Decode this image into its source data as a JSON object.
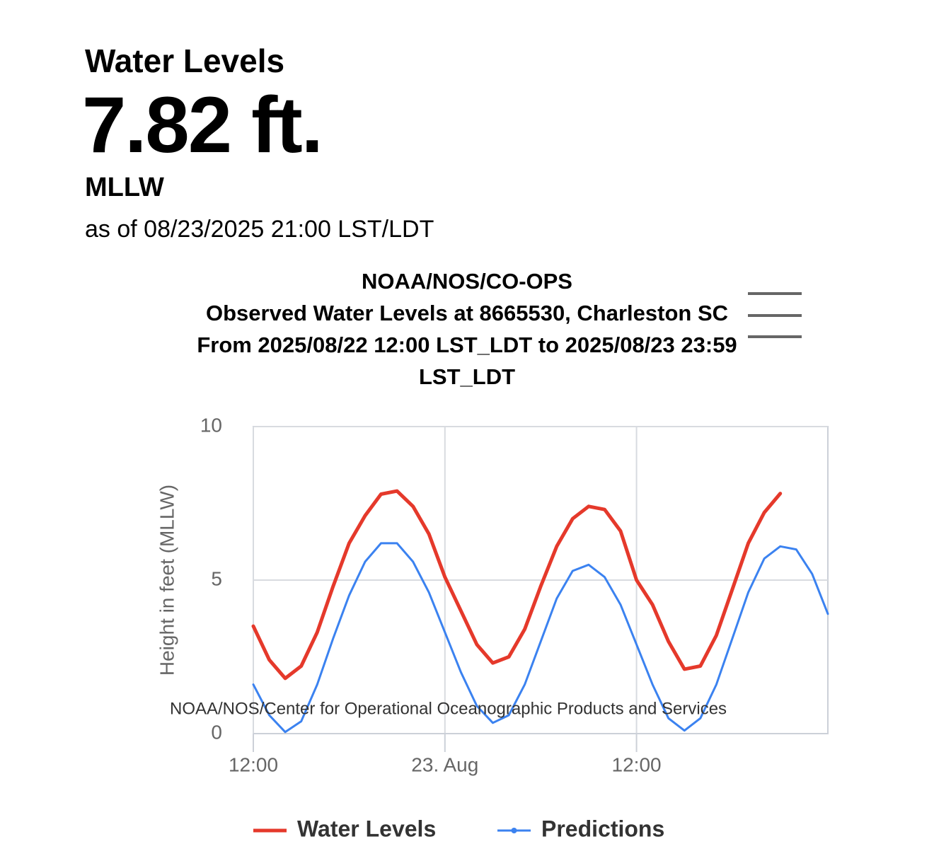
{
  "header": {
    "title": "Water Levels",
    "value": "7.82 ft.",
    "datum": "MLLW",
    "as_of": "as of 08/23/2025 21:00 LST/LDT"
  },
  "chart_data": {
    "type": "line",
    "title": [
      "NOAA/NOS/CO-OPS",
      "Observed Water Levels at 8665530, Charleston SC",
      "From 2025/08/22 12:00 LST_LDT to 2025/08/23 23:59 LST_LDT"
    ],
    "ylabel": "Height in feet (MLLW)",
    "credit": "NOAA/NOS/Center for Operational Oceanographic Products and Services",
    "xlim": [
      "2025-08-22 12:00",
      "2025-08-23 23:59"
    ],
    "xticks": [
      {
        "value": "2025-08-22 12:00",
        "label": "12:00"
      },
      {
        "value": "2025-08-23 00:00",
        "label": "23. Aug"
      },
      {
        "value": "2025-08-23 12:00",
        "label": "12:00"
      }
    ],
    "ylim": [
      0,
      10
    ],
    "yticks": [
      0,
      5,
      10
    ],
    "grid": true,
    "legend": "bottom",
    "series": [
      {
        "name": "Water Levels",
        "color": "#e5392b",
        "x": [
          "2025-08-22 12:00",
          "2025-08-22 13:00",
          "2025-08-22 14:00",
          "2025-08-22 15:00",
          "2025-08-22 16:00",
          "2025-08-22 17:00",
          "2025-08-22 18:00",
          "2025-08-22 19:00",
          "2025-08-22 20:00",
          "2025-08-22 21:00",
          "2025-08-22 22:00",
          "2025-08-22 23:00",
          "2025-08-23 00:00",
          "2025-08-23 01:00",
          "2025-08-23 02:00",
          "2025-08-23 03:00",
          "2025-08-23 04:00",
          "2025-08-23 05:00",
          "2025-08-23 06:00",
          "2025-08-23 07:00",
          "2025-08-23 08:00",
          "2025-08-23 09:00",
          "2025-08-23 10:00",
          "2025-08-23 11:00",
          "2025-08-23 12:00",
          "2025-08-23 13:00",
          "2025-08-23 14:00",
          "2025-08-23 15:00",
          "2025-08-23 16:00",
          "2025-08-23 17:00",
          "2025-08-23 18:00",
          "2025-08-23 19:00",
          "2025-08-23 20:00",
          "2025-08-23 21:00"
        ],
        "values": [
          3.5,
          2.4,
          1.8,
          2.2,
          3.3,
          4.8,
          6.2,
          7.1,
          7.8,
          7.9,
          7.4,
          6.5,
          5.1,
          4.0,
          2.9,
          2.3,
          2.5,
          3.4,
          4.8,
          6.1,
          7.0,
          7.4,
          7.3,
          6.6,
          5.0,
          4.2,
          3.0,
          2.1,
          2.2,
          3.2,
          4.7,
          6.2,
          7.2,
          7.82
        ]
      },
      {
        "name": "Predictions",
        "color": "#3b82f0",
        "x": [
          "2025-08-22 12:00",
          "2025-08-22 13:00",
          "2025-08-22 14:00",
          "2025-08-22 15:00",
          "2025-08-22 16:00",
          "2025-08-22 17:00",
          "2025-08-22 18:00",
          "2025-08-22 19:00",
          "2025-08-22 20:00",
          "2025-08-22 21:00",
          "2025-08-22 22:00",
          "2025-08-22 23:00",
          "2025-08-23 00:00",
          "2025-08-23 01:00",
          "2025-08-23 02:00",
          "2025-08-23 03:00",
          "2025-08-23 04:00",
          "2025-08-23 05:00",
          "2025-08-23 06:00",
          "2025-08-23 07:00",
          "2025-08-23 08:00",
          "2025-08-23 09:00",
          "2025-08-23 10:00",
          "2025-08-23 11:00",
          "2025-08-23 12:00",
          "2025-08-23 13:00",
          "2025-08-23 14:00",
          "2025-08-23 15:00",
          "2025-08-23 16:00",
          "2025-08-23 17:00",
          "2025-08-23 18:00",
          "2025-08-23 19:00",
          "2025-08-23 20:00",
          "2025-08-23 21:00",
          "2025-08-23 22:00",
          "2025-08-23 23:00",
          "2025-08-23 23:59"
        ],
        "values": [
          1.6,
          0.6,
          0.05,
          0.4,
          1.6,
          3.1,
          4.5,
          5.6,
          6.2,
          6.2,
          5.6,
          4.6,
          3.3,
          2.0,
          0.9,
          0.35,
          0.6,
          1.6,
          3.0,
          4.4,
          5.3,
          5.5,
          5.1,
          4.2,
          2.9,
          1.6,
          0.5,
          0.1,
          0.5,
          1.6,
          3.1,
          4.6,
          5.7,
          6.1,
          6.0,
          5.2,
          3.9
        ]
      }
    ]
  }
}
